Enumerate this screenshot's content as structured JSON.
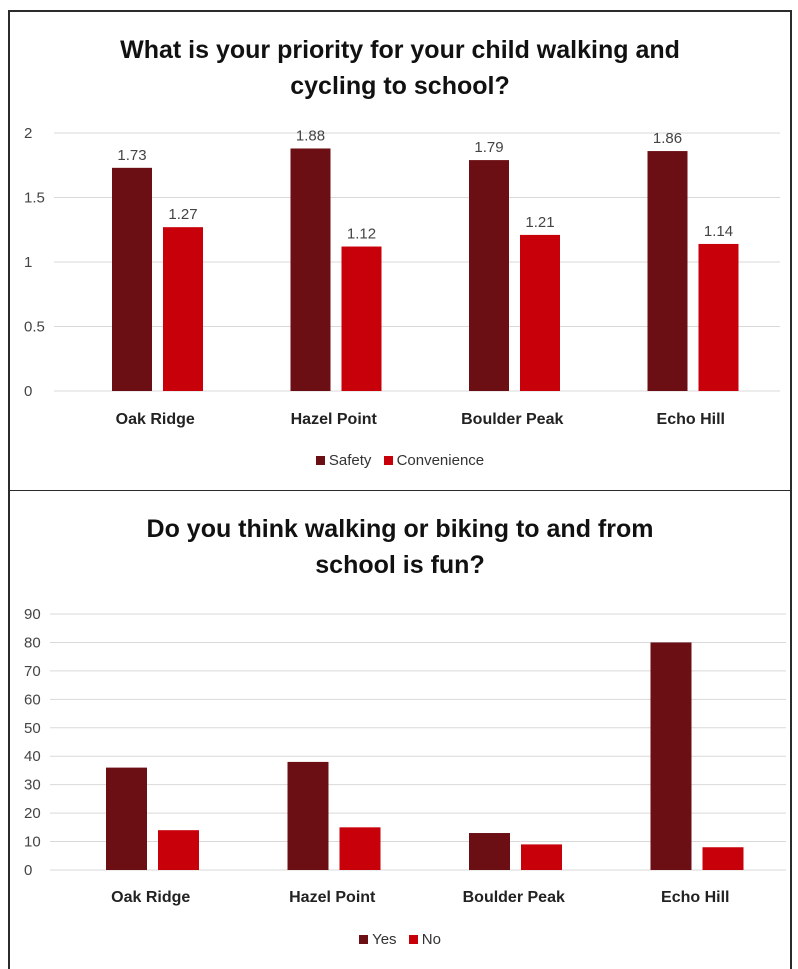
{
  "colors": {
    "series_dark": "#6b0f14",
    "series_red": "#c8000a",
    "grid": "#d9d9d9",
    "axis_text": "#444444",
    "label_text": "#222222"
  },
  "chart_data": [
    {
      "type": "bar",
      "title_lines": [
        "What is your priority for your child walking and",
        "cycling to school?"
      ],
      "categories": [
        "Oak Ridge",
        "Hazel Point",
        "Boulder Peak",
        "Echo Hill"
      ],
      "series": [
        {
          "name": "Safety",
          "values": [
            1.73,
            1.88,
            1.79,
            1.86
          ],
          "labels": [
            "1.73",
            "1.88",
            "1.79",
            "1.86"
          ],
          "color": "#6b0f14"
        },
        {
          "name": "Convenience",
          "values": [
            1.27,
            1.12,
            1.21,
            1.14
          ],
          "labels": [
            "1.27",
            "1.12",
            "1.21",
            "1.14"
          ],
          "color": "#c8000a"
        }
      ],
      "ylim": [
        0,
        2
      ],
      "yticks": [
        0,
        0.5,
        1,
        1.5,
        2
      ],
      "ytick_labels": [
        "0",
        "0.5",
        "1",
        "1.5",
        "2"
      ],
      "grid": true,
      "data_labels": true,
      "legend": "bottom"
    },
    {
      "type": "bar",
      "title_lines": [
        "Do you think walking or biking to and from",
        "school is fun?"
      ],
      "categories": [
        "Oak Ridge",
        "Hazel Point",
        "Boulder Peak",
        "Echo Hill"
      ],
      "series": [
        {
          "name": "Yes",
          "values": [
            36,
            38,
            13,
            80
          ],
          "color": "#6b0f14"
        },
        {
          "name": "No",
          "values": [
            14,
            15,
            9,
            8
          ],
          "color": "#c8000a"
        }
      ],
      "ylim": [
        0,
        90
      ],
      "yticks": [
        0,
        10,
        20,
        30,
        40,
        50,
        60,
        70,
        80,
        90
      ],
      "ytick_labels": [
        "0",
        "10",
        "20",
        "30",
        "40",
        "50",
        "60",
        "70",
        "80",
        "90"
      ],
      "grid": true,
      "data_labels": false,
      "legend": "bottom"
    }
  ]
}
